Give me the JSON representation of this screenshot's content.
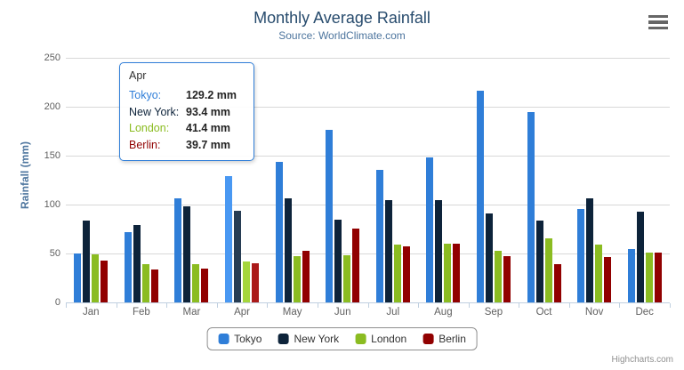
{
  "title": "Monthly Average Rainfall",
  "subtitle": "Source: WorldClimate.com",
  "y_axis_title": "Rainfall (mm)",
  "credits": "Highcharts.com",
  "theme": {
    "title_color": "#274b6d",
    "subtitle_color": "#4d759e",
    "axis_title_color": "#4d759e",
    "axis_label_color": "#606060",
    "grid_color": "#d8d8d8",
    "axis_line_color": "#c0d0e0",
    "legend_border_color": "#909090",
    "legend_text_color": "#333333",
    "credits_color": "#909090",
    "menu_icon_color": "#666666",
    "tooltip_border_color": "#2f7ed8",
    "tooltip_bg": "rgba(255,255,255,0.92)",
    "tooltip_text_color": "#333333",
    "tooltip_value_color": "#222222"
  },
  "chart_data": {
    "type": "bar",
    "title": "Monthly Average Rainfall",
    "subtitle": "Source: WorldClimate.com",
    "xlabel": "",
    "ylabel": "Rainfall (mm)",
    "ylim": [
      0,
      250
    ],
    "yticks": [
      0,
      50,
      100,
      150,
      200,
      250
    ],
    "grid": true,
    "legend_position": "bottom",
    "categories": [
      "Jan",
      "Feb",
      "Mar",
      "Apr",
      "May",
      "Jun",
      "Jul",
      "Aug",
      "Sep",
      "Oct",
      "Nov",
      "Dec"
    ],
    "series": [
      {
        "name": "Tokyo",
        "color": "#2f7ed8",
        "values": [
          49.9,
          71.5,
          106.4,
          129.2,
          144.0,
          176.0,
          135.6,
          148.5,
          216.4,
          194.1,
          95.6,
          54.4
        ]
      },
      {
        "name": "New York",
        "color": "#0d233a",
        "values": [
          83.6,
          78.8,
          98.5,
          93.4,
          106.0,
          84.5,
          105.0,
          104.3,
          91.2,
          83.5,
          106.6,
          92.3
        ]
      },
      {
        "name": "London",
        "color": "#8bbc21",
        "values": [
          48.9,
          38.8,
          39.3,
          41.4,
          47.0,
          48.3,
          59.0,
          59.6,
          52.4,
          65.2,
          59.3,
          51.2
        ]
      },
      {
        "name": "Berlin",
        "color": "#910000",
        "values": [
          42.4,
          33.2,
          34.5,
          39.7,
          52.6,
          75.5,
          57.4,
          60.4,
          47.6,
          39.1,
          46.8,
          51.1
        ]
      }
    ]
  },
  "tooltip": {
    "category": "Apr",
    "points": [
      {
        "name": "Tokyo",
        "label": "Tokyo:",
        "value": "129.2 mm"
      },
      {
        "name": "New York",
        "label": "New York:",
        "value": "93.4 mm"
      },
      {
        "name": "London",
        "label": "London:",
        "value": "41.4 mm"
      },
      {
        "name": "Berlin",
        "label": "Berlin:",
        "value": "39.7 mm"
      }
    ]
  },
  "legend": {
    "items": [
      "Tokyo",
      "New York",
      "London",
      "Berlin"
    ]
  }
}
